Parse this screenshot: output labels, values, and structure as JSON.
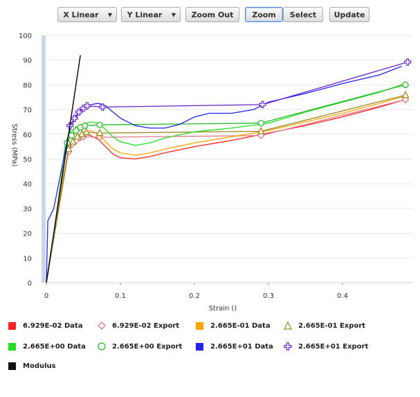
{
  "toolbar": {
    "x_scale": "X Linear",
    "y_scale": "Y Linear",
    "zoom_out": "Zoom Out",
    "zoom": "Zoom",
    "select": "Select",
    "update": "Update",
    "dropdown_glyph": "▼"
  },
  "chart_data": {
    "type": "line",
    "xlabel": "Strain ()",
    "ylabel": "Stress (MPa)",
    "xlim": [
      0,
      0.5
    ],
    "ylim": [
      0,
      100
    ],
    "xticks": [
      "0",
      "0.1",
      "0.2",
      "0.3",
      "0.4"
    ],
    "yticks": [
      "0",
      "10",
      "20",
      "30",
      "40",
      "50",
      "60",
      "70",
      "80",
      "90",
      "100"
    ],
    "grid": true,
    "legend_position": "bottom",
    "series": [
      {
        "name": "6.929E-02  Data",
        "color": "#ff2020",
        "marker": "none",
        "x": [
          0,
          0.01,
          0.02,
          0.03,
          0.04,
          0.05,
          0.06,
          0.07,
          0.08,
          0.09,
          0.1,
          0.12,
          0.14,
          0.16,
          0.2,
          0.25,
          0.3,
          0.35,
          0.4,
          0.45,
          0.485
        ],
        "y": [
          0,
          18,
          38,
          53,
          58,
          60,
          59.5,
          58,
          55,
          52,
          50.5,
          50,
          51,
          52.5,
          55,
          57.5,
          60.5,
          63.5,
          67,
          71,
          74
        ]
      },
      {
        "name": "6.929E-02 Export",
        "color": "#e07a8a",
        "marker": "diamond",
        "x": [
          0,
          0.03,
          0.035,
          0.04,
          0.045,
          0.05,
          0.072,
          0.29,
          0.485
        ],
        "y": [
          0,
          53,
          56,
          57.5,
          58.5,
          59,
          58.8,
          59.5,
          74
        ]
      },
      {
        "name": "2.665E-01  Data",
        "color": "#ffa500",
        "marker": "none",
        "x": [
          0,
          0.01,
          0.02,
          0.03,
          0.04,
          0.05,
          0.06,
          0.07,
          0.08,
          0.09,
          0.1,
          0.12,
          0.14,
          0.16,
          0.2,
          0.25,
          0.3,
          0.35,
          0.4,
          0.45,
          0.485
        ],
        "y": [
          0,
          18,
          38,
          54,
          59,
          61,
          61.5,
          60,
          57,
          54,
          52.5,
          51.5,
          52.5,
          54,
          56.5,
          59,
          61.5,
          65,
          68.5,
          72.5,
          75.5
        ]
      },
      {
        "name": "2.665E-01 Export",
        "color": "#a08a20",
        "marker": "triangle",
        "x": [
          0,
          0.03,
          0.036,
          0.042,
          0.048,
          0.054,
          0.072,
          0.29,
          0.485
        ],
        "y": [
          0,
          54,
          57,
          59,
          60,
          60.8,
          60.5,
          61.2,
          75.8
        ]
      },
      {
        "name": "2.665E+00  Data",
        "color": "#22dd22",
        "marker": "none",
        "x": [
          0,
          0.01,
          0.02,
          0.025,
          0.03,
          0.04,
          0.05,
          0.06,
          0.07,
          0.08,
          0.09,
          0.1,
          0.12,
          0.14,
          0.16,
          0.2,
          0.25,
          0.3,
          0.35,
          0.4,
          0.45,
          0.485
        ],
        "y": [
          0,
          20,
          42,
          55,
          60,
          63,
          64,
          65,
          64.5,
          62,
          59,
          57,
          55.5,
          56.5,
          58.5,
          61,
          62.5,
          64.5,
          69,
          73,
          77,
          80.5
        ]
      },
      {
        "name": "2.665E+00 Export",
        "color": "#22bb22",
        "marker": "circle",
        "x": [
          0,
          0.028,
          0.034,
          0.04,
          0.046,
          0.052,
          0.072,
          0.29,
          0.485
        ],
        "y": [
          0,
          56.5,
          59.5,
          61.5,
          62.8,
          63.5,
          63.8,
          64.5,
          80
        ]
      },
      {
        "name": "2.665E+01  Data",
        "color": "#2222ee",
        "marker": "none",
        "x": [
          0,
          0.002,
          0.01,
          0.02,
          0.03,
          0.035,
          0.04,
          0.045,
          0.05,
          0.06,
          0.07,
          0.08,
          0.09,
          0.1,
          0.12,
          0.14,
          0.16,
          0.18,
          0.2,
          0.22,
          0.25,
          0.28,
          0.3,
          0.35,
          0.4,
          0.45,
          0.48
        ],
        "y": [
          0,
          25,
          30,
          45,
          60,
          64,
          67,
          69,
          71,
          72,
          72.5,
          71.5,
          69,
          66.5,
          63.5,
          62.5,
          62.5,
          64,
          67,
          68.5,
          68.5,
          70,
          73,
          76.5,
          80.5,
          84,
          87.5
        ]
      },
      {
        "name": "2.665E+01 Export",
        "color": "#6622cc",
        "marker": "cross",
        "x": [
          0,
          0.032,
          0.038,
          0.044,
          0.05,
          0.055,
          0.076,
          0.292,
          0.488
        ],
        "y": [
          0,
          63.5,
          66.5,
          69,
          70.5,
          71.5,
          71,
          72,
          89.2
        ]
      },
      {
        "name": "Modulus",
        "color": "#111111",
        "marker": "none",
        "x": [
          0,
          0.046
        ],
        "y": [
          0,
          92
        ]
      }
    ]
  }
}
